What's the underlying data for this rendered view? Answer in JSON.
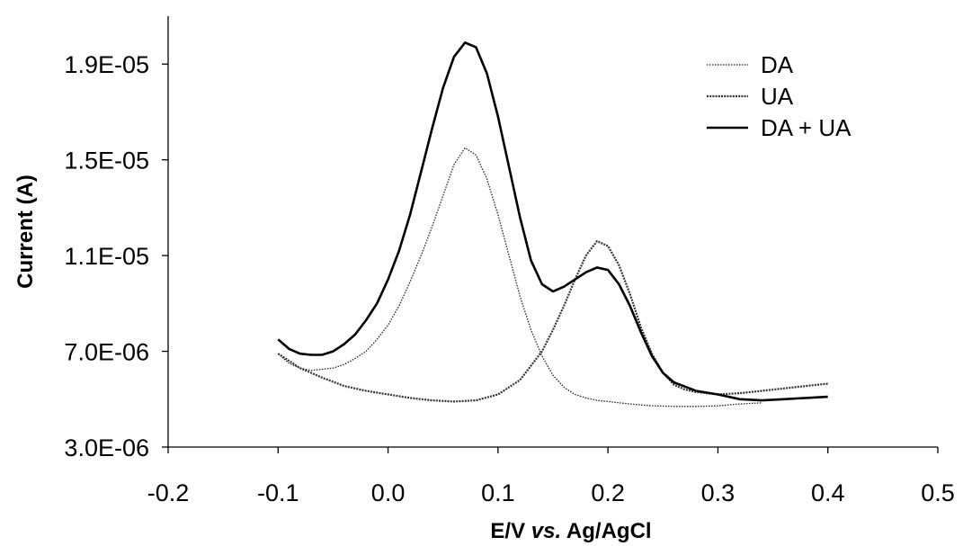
{
  "chart_data": {
    "type": "line",
    "title": "",
    "xlabel": "E/V vs. Ag/AgCl",
    "xlabel_parts": [
      "E/V ",
      "vs.",
      " Ag/AgCl"
    ],
    "ylabel": "Current (A)",
    "xlim": [
      -0.2,
      0.5
    ],
    "ylim": [
      3e-06,
      2.1e-05
    ],
    "x_ticks": [
      -0.2,
      -0.1,
      0.0,
      0.1,
      0.2,
      0.3,
      0.4,
      0.5
    ],
    "x_tick_labels": [
      "-0.2",
      "-0.1",
      "0.0",
      "0.1",
      "0.2",
      "0.3",
      "0.4",
      "0.5"
    ],
    "y_ticks": [
      3e-06,
      7e-06,
      1.1e-05,
      1.5e-05,
      1.9e-05
    ],
    "y_tick_labels": [
      "3.0E-06",
      "7.0E-06",
      "1.1E-05",
      "1.5E-05",
      "1.9E-05"
    ],
    "grid": false,
    "legend_position": "top-right",
    "series": [
      {
        "name": "DA",
        "style": "dotted-thin",
        "color": "#222222",
        "x": [
          -0.1,
          -0.09,
          -0.08,
          -0.07,
          -0.06,
          -0.05,
          -0.04,
          -0.03,
          -0.02,
          -0.01,
          0.0,
          0.01,
          0.02,
          0.03,
          0.04,
          0.05,
          0.06,
          0.07,
          0.08,
          0.09,
          0.1,
          0.11,
          0.12,
          0.13,
          0.14,
          0.15,
          0.16,
          0.17,
          0.18,
          0.19,
          0.2,
          0.22,
          0.24,
          0.26,
          0.28,
          0.3,
          0.32,
          0.34
        ],
        "y": [
          6.9e-06,
          6.5e-06,
          6.3e-06,
          6.2e-06,
          6.25e-06,
          6.3e-06,
          6.45e-06,
          6.7e-06,
          7e-06,
          7.5e-06,
          8.1e-06,
          8.9e-06,
          9.9e-06,
          1.1e-05,
          1.22e-05,
          1.35e-05,
          1.48e-05,
          1.55e-05,
          1.52e-05,
          1.42e-05,
          1.27e-05,
          1.1e-05,
          9.3e-06,
          7.9e-06,
          6.8e-06,
          6e-06,
          5.5e-06,
          5.2e-06,
          5.05e-06,
          4.95e-06,
          4.9e-06,
          4.8e-06,
          4.72e-06,
          4.7e-06,
          4.7e-06,
          4.72e-06,
          4.8e-06,
          4.85e-06
        ]
      },
      {
        "name": "UA",
        "style": "dotted-thick",
        "color": "#333333",
        "x": [
          -0.1,
          -0.08,
          -0.06,
          -0.04,
          -0.02,
          0.0,
          0.02,
          0.04,
          0.06,
          0.08,
          0.1,
          0.12,
          0.14,
          0.15,
          0.16,
          0.17,
          0.18,
          0.19,
          0.2,
          0.21,
          0.22,
          0.23,
          0.24,
          0.25,
          0.26,
          0.27,
          0.28,
          0.3,
          0.32,
          0.34,
          0.36,
          0.38,
          0.4
        ],
        "y": [
          6.9e-06,
          6.3e-06,
          5.9e-06,
          5.55e-06,
          5.35e-06,
          5.2e-06,
          5.05e-06,
          4.95e-06,
          4.9e-06,
          4.95e-06,
          5.2e-06,
          5.8e-06,
          7e-06,
          7.9e-06,
          8.9e-06,
          1e-05,
          1.1e-05,
          1.16e-05,
          1.14e-05,
          1.06e-05,
          9.4e-06,
          8e-06,
          6.9e-06,
          6.1e-06,
          5.6e-06,
          5.4e-06,
          5.3e-06,
          5.2e-06,
          5.25e-06,
          5.35e-06,
          5.45e-06,
          5.55e-06,
          5.65e-06
        ]
      },
      {
        "name": "DA + UA",
        "style": "solid",
        "color": "#000000",
        "x": [
          -0.1,
          -0.09,
          -0.08,
          -0.07,
          -0.06,
          -0.05,
          -0.04,
          -0.03,
          -0.02,
          -0.01,
          0.0,
          0.01,
          0.02,
          0.03,
          0.04,
          0.05,
          0.06,
          0.07,
          0.08,
          0.09,
          0.1,
          0.11,
          0.12,
          0.13,
          0.14,
          0.15,
          0.16,
          0.17,
          0.18,
          0.19,
          0.2,
          0.21,
          0.22,
          0.23,
          0.24,
          0.25,
          0.26,
          0.28,
          0.3,
          0.32,
          0.34,
          0.36,
          0.38,
          0.4
        ],
        "y": [
          7.5e-06,
          7.1e-06,
          6.9e-06,
          6.85e-06,
          6.85e-06,
          7e-06,
          7.3e-06,
          7.7e-06,
          8.3e-06,
          9e-06,
          1e-05,
          1.12e-05,
          1.27e-05,
          1.45e-05,
          1.63e-05,
          1.8e-05,
          1.93e-05,
          1.99e-05,
          1.97e-05,
          1.86e-05,
          1.68e-05,
          1.47e-05,
          1.26e-05,
          1.08e-05,
          9.8e-06,
          9.5e-06,
          9.7e-06,
          1e-05,
          1.03e-05,
          1.05e-05,
          1.04e-05,
          9.8e-06,
          8.9e-06,
          7.8e-06,
          6.8e-06,
          6.1e-06,
          5.7e-06,
          5.35e-06,
          5.2e-06,
          5e-06,
          4.95e-06,
          5e-06,
          5.05e-06,
          5.1e-06
        ]
      }
    ]
  }
}
